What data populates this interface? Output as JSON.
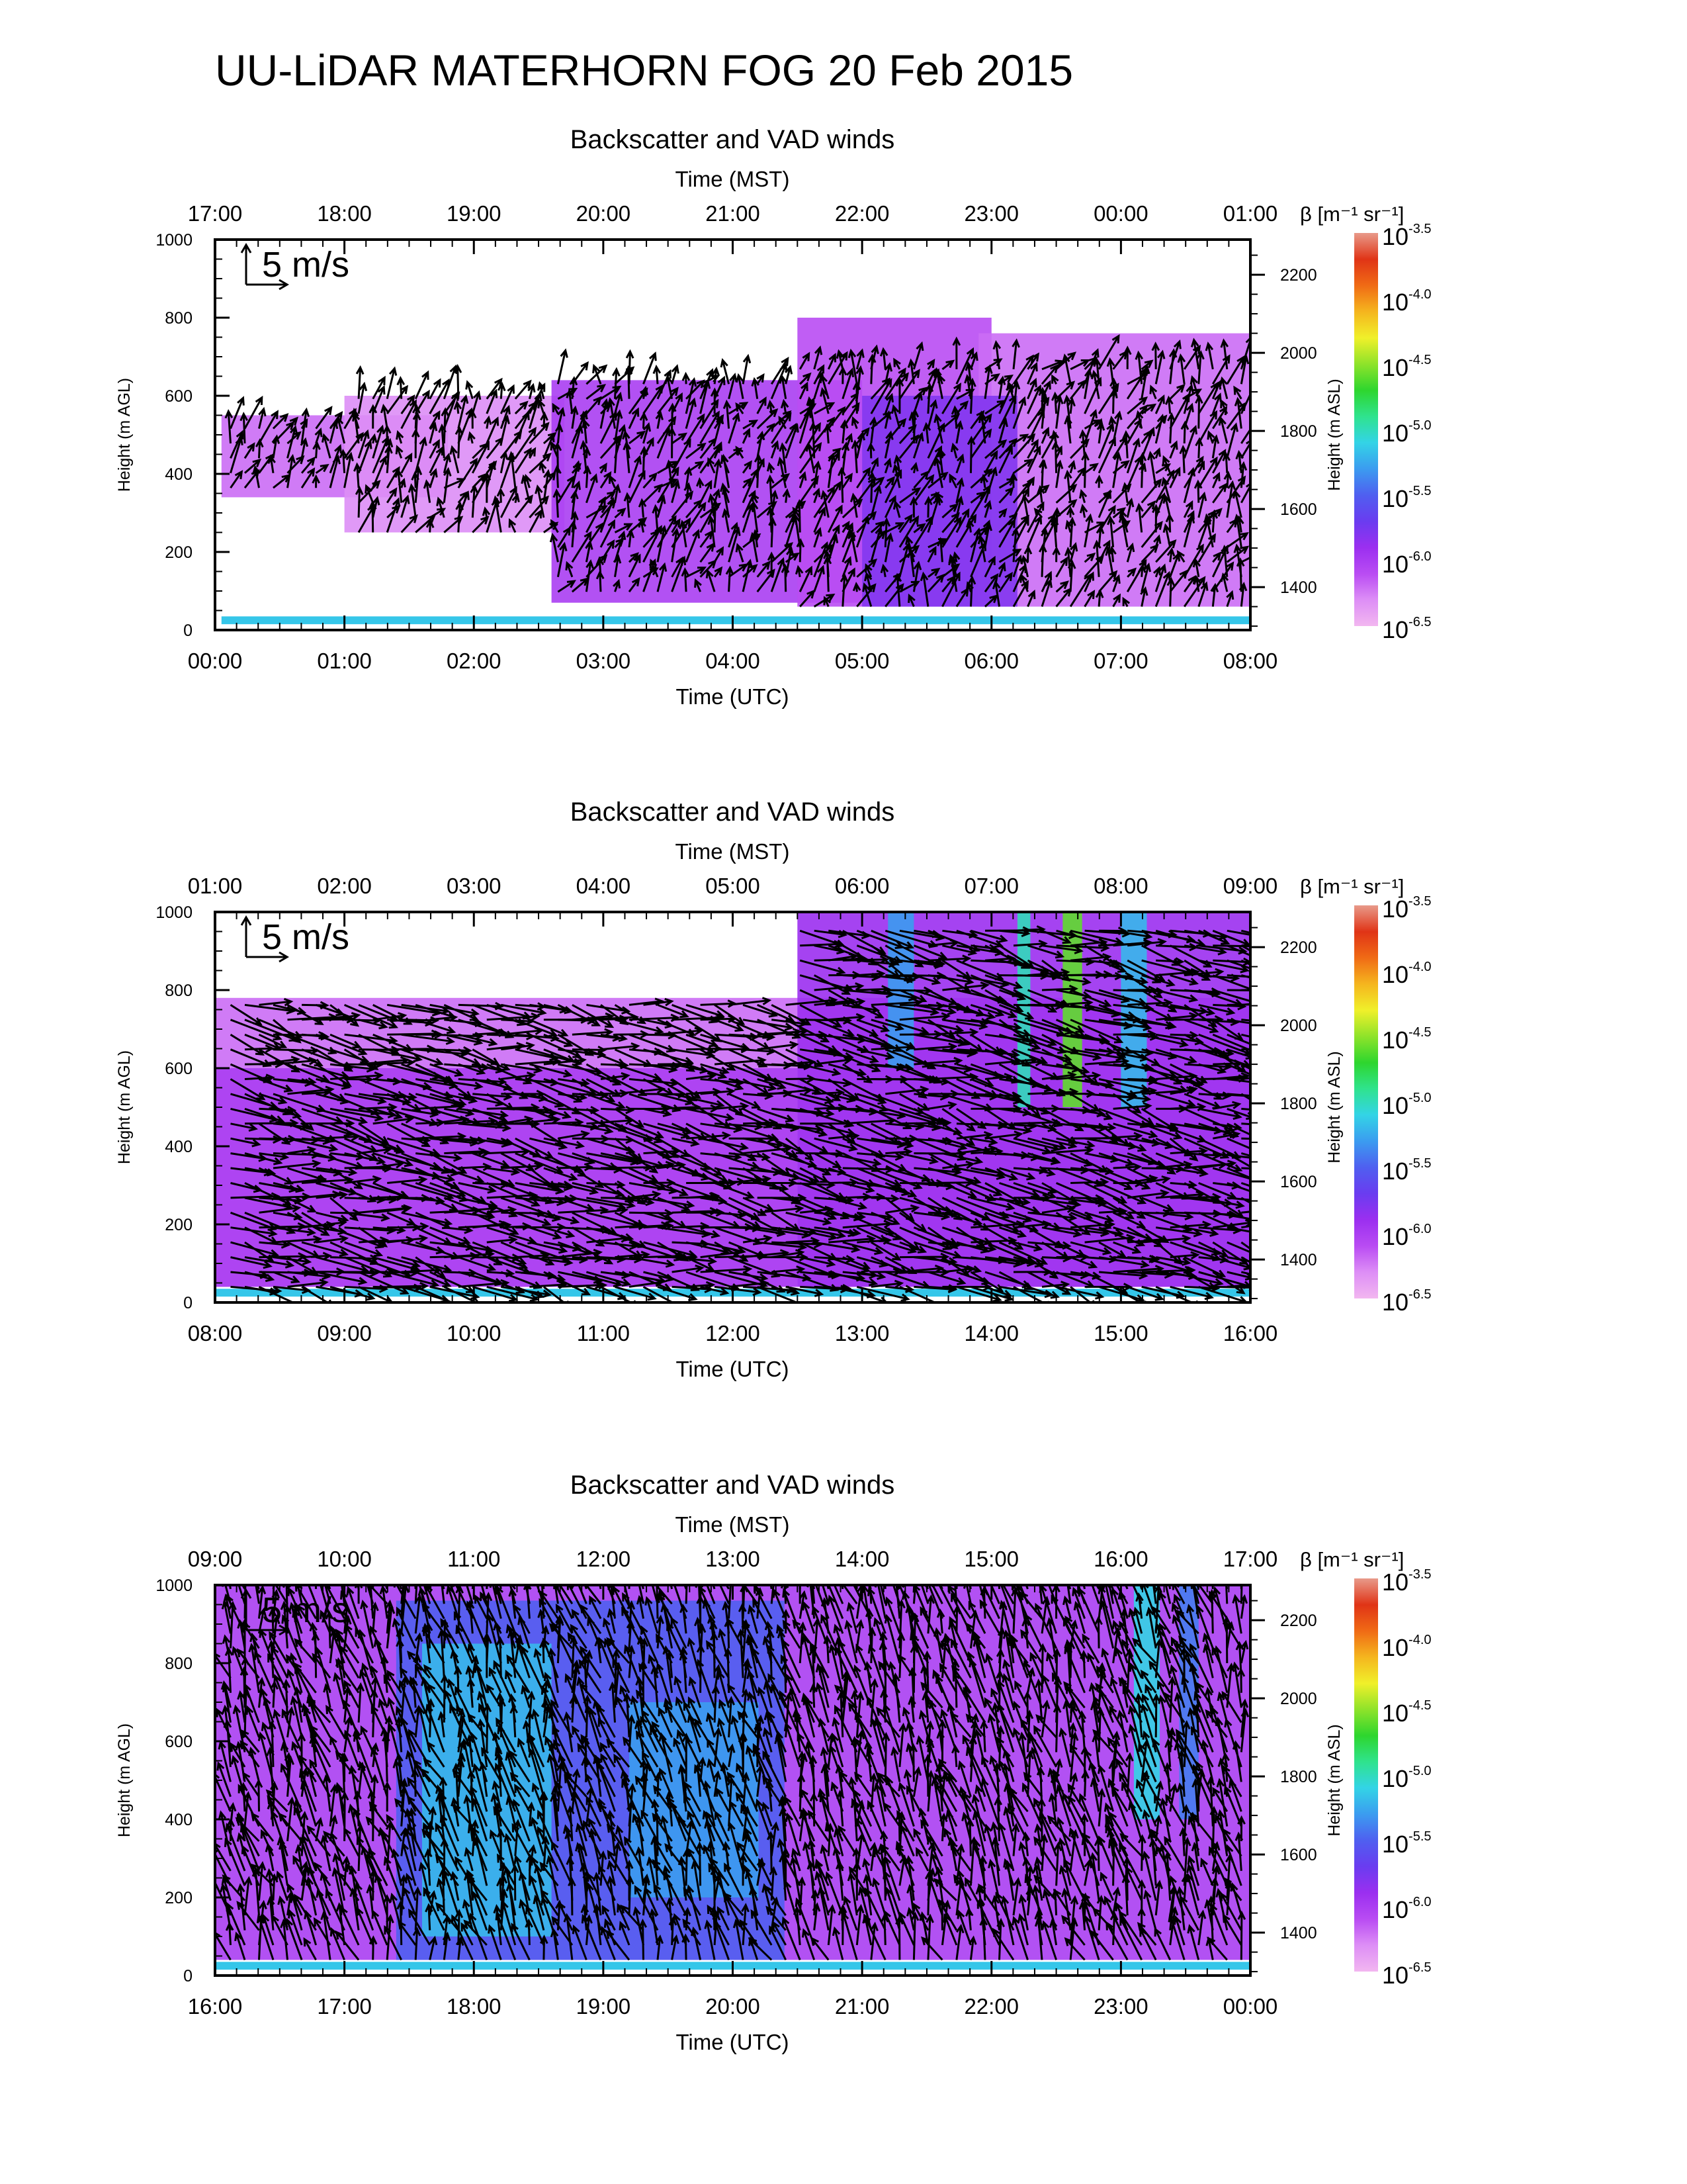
{
  "page": {
    "title": "UU-LiDAR MATERHORN FOG  20 Feb 2015"
  },
  "colors": {
    "colormap": [
      "#f2b6f0",
      "#dd8ef6",
      "#b94cf3",
      "#9b2ff0",
      "#6a3cf0",
      "#4f5ff0",
      "#3b9cf0",
      "#33d4e6",
      "#2fe38e",
      "#2ed62e",
      "#8fe32a",
      "#f0f02a",
      "#f5b51e",
      "#f06a15",
      "#e03416",
      "#e89a8a"
    ],
    "arrow": "#000000",
    "axis": "#000000"
  },
  "chart_data": [
    {
      "type": "heatmap",
      "subtitle": "Backscatter and VAD winds",
      "top_axis_title": "Time (MST)",
      "top_ticks": [
        "17:00",
        "18:00",
        "19:00",
        "20:00",
        "21:00",
        "22:00",
        "23:00",
        "00:00",
        "01:00"
      ],
      "bottom_axis_title": "Time (UTC)",
      "bottom_ticks": [
        "00:00",
        "01:00",
        "02:00",
        "03:00",
        "04:00",
        "05:00",
        "06:00",
        "07:00",
        "08:00"
      ],
      "ylabel": "Height (m AGL)",
      "y_ticks": [
        "0",
        "200",
        "400",
        "600",
        "800",
        "1000"
      ],
      "y_ticks_values": [
        0,
        200,
        400,
        600,
        800,
        1000
      ],
      "ylim": [
        0,
        1000
      ],
      "y2label": "Height (m ASL)",
      "y2_ticks": [
        "1400",
        "1600",
        "1800",
        "2000",
        "2200"
      ],
      "y2_ticks_values": [
        1400,
        1600,
        1800,
        2000,
        2200
      ],
      "y2lim": [
        1290,
        2290
      ],
      "xlim_hours_utc": [
        0,
        8
      ],
      "reference_arrow_label": "5 m/s",
      "colorbar": {
        "label": "β [m⁻¹ sr⁻¹]",
        "ticks": [
          "10-3.5",
          "10-4.0",
          "10-4.5",
          "10-5.0",
          "10-5.5",
          "10-6.0",
          "10-6.5"
        ],
        "log_range": [
          -6.5,
          -3.5
        ]
      },
      "backscatter_regions": [
        {
          "t0": 0.05,
          "t1": 1.8,
          "h0": 340,
          "h1": 550,
          "log_beta": -6.2
        },
        {
          "t0": 1.0,
          "t1": 2.7,
          "h0": 250,
          "h1": 600,
          "log_beta": -6.3
        },
        {
          "t0": 2.6,
          "t1": 5.0,
          "h0": 70,
          "h1": 640,
          "log_beta": -6.0
        },
        {
          "t0": 4.5,
          "t1": 6.0,
          "h0": 60,
          "h1": 800,
          "log_beta": -6.1
        },
        {
          "t0": 5.9,
          "t1": 8.0,
          "h0": 60,
          "h1": 760,
          "log_beta": -6.2
        },
        {
          "t0": 5.0,
          "t1": 6.2,
          "h0": 60,
          "h1": 600,
          "log_beta": -5.8
        }
      ],
      "wind_profile": {
        "h0": 60,
        "h1": 680,
        "u_mean": 0.8,
        "v_mean": 2.5
      }
    },
    {
      "type": "heatmap",
      "subtitle": "Backscatter and VAD winds",
      "top_axis_title": "Time (MST)",
      "top_ticks": [
        "01:00",
        "02:00",
        "03:00",
        "04:00",
        "05:00",
        "06:00",
        "07:00",
        "08:00",
        "09:00"
      ],
      "bottom_axis_title": "Time (UTC)",
      "bottom_ticks": [
        "08:00",
        "09:00",
        "10:00",
        "11:00",
        "12:00",
        "13:00",
        "14:00",
        "15:00",
        "16:00"
      ],
      "ylabel": "Height (m AGL)",
      "y_ticks": [
        "0",
        "200",
        "400",
        "600",
        "800",
        "1000"
      ],
      "y_ticks_values": [
        0,
        200,
        400,
        600,
        800,
        1000
      ],
      "ylim": [
        0,
        1000
      ],
      "y2label": "Height (m ASL)",
      "y2_ticks": [
        "1400",
        "1600",
        "1800",
        "2000",
        "2200"
      ],
      "y2_ticks_values": [
        1400,
        1600,
        1800,
        2000,
        2200
      ],
      "y2lim": [
        1290,
        2290
      ],
      "xlim_hours_utc": [
        8,
        16
      ],
      "reference_arrow_label": "5 m/s",
      "colorbar": {
        "label": "β [m⁻¹ sr⁻¹]",
        "ticks": [
          "10-3.5",
          "10-4.0",
          "10-4.5",
          "10-5.0",
          "10-5.5",
          "10-6.0",
          "10-6.5"
        ],
        "log_range": [
          -6.5,
          -3.5
        ]
      },
      "backscatter_regions": [
        {
          "t0": 8.0,
          "t1": 16.0,
          "h0": 40,
          "h1": 780,
          "log_beta": -6.2
        },
        {
          "t0": 8.0,
          "t1": 12.5,
          "h0": 40,
          "h1": 600,
          "log_beta": -6.0
        },
        {
          "t0": 12.5,
          "t1": 16.0,
          "h0": 40,
          "h1": 1000,
          "log_beta": -5.9
        },
        {
          "t0": 13.2,
          "t1": 13.4,
          "h0": 600,
          "h1": 1000,
          "log_beta": -5.3
        },
        {
          "t0": 14.2,
          "t1": 14.3,
          "h0": 500,
          "h1": 1000,
          "log_beta": -5.0
        },
        {
          "t0": 14.55,
          "t1": 14.7,
          "h0": 500,
          "h1": 1000,
          "log_beta": -4.6
        },
        {
          "t0": 15.0,
          "t1": 15.2,
          "h0": 500,
          "h1": 1000,
          "log_beta": -5.2
        }
      ],
      "wind_profile": {
        "h0": 40,
        "h1": 960,
        "u_mean": 4.5,
        "v_mean": -1.0
      }
    },
    {
      "type": "heatmap",
      "subtitle": "Backscatter and VAD winds",
      "top_axis_title": "Time (MST)",
      "top_ticks": [
        "09:00",
        "10:00",
        "11:00",
        "12:00",
        "13:00",
        "14:00",
        "15:00",
        "16:00",
        "17:00"
      ],
      "bottom_axis_title": "Time (UTC)",
      "bottom_ticks": [
        "16:00",
        "17:00",
        "18:00",
        "19:00",
        "20:00",
        "21:00",
        "22:00",
        "23:00",
        "00:00"
      ],
      "ylabel": "Height (m AGL)",
      "y_ticks": [
        "0",
        "200",
        "400",
        "600",
        "800",
        "1000"
      ],
      "y_ticks_values": [
        0,
        200,
        400,
        600,
        800,
        1000
      ],
      "ylim": [
        0,
        1000
      ],
      "y2label": "Height (m ASL)",
      "y2_ticks": [
        "1400",
        "1600",
        "1800",
        "2000",
        "2200"
      ],
      "y2_ticks_values": [
        1400,
        1600,
        1800,
        2000,
        2200
      ],
      "y2lim": [
        1290,
        2290
      ],
      "xlim_hours_utc": [
        16,
        24
      ],
      "reference_arrow_label": "5 m/s",
      "colorbar": {
        "label": "β [m⁻¹ sr⁻¹]",
        "ticks": [
          "10-3.5",
          "10-4.0",
          "10-4.5",
          "10-5.0",
          "10-5.5",
          "10-6.0",
          "10-6.5"
        ],
        "log_range": [
          -6.5,
          -3.5
        ]
      },
      "backscatter_regions": [
        {
          "t0": 16.0,
          "t1": 24.0,
          "h0": 40,
          "h1": 1000,
          "log_beta": -6.0
        },
        {
          "t0": 17.4,
          "t1": 20.4,
          "h0": 40,
          "h1": 960,
          "log_beta": -5.5
        },
        {
          "t0": 17.6,
          "t1": 18.6,
          "h0": 100,
          "h1": 850,
          "log_beta": -5.2
        },
        {
          "t0": 19.2,
          "t1": 20.2,
          "h0": 200,
          "h1": 700,
          "log_beta": -5.3
        },
        {
          "t0": 23.1,
          "t1": 23.3,
          "h0": 400,
          "h1": 1000,
          "log_beta": -5.1
        },
        {
          "t0": 23.45,
          "t1": 23.6,
          "h0": 400,
          "h1": 1000,
          "log_beta": -5.4
        }
      ],
      "wind_profile": {
        "h0": 40,
        "h1": 1000,
        "u_mean": -1.0,
        "v_mean": 4.0
      }
    }
  ]
}
